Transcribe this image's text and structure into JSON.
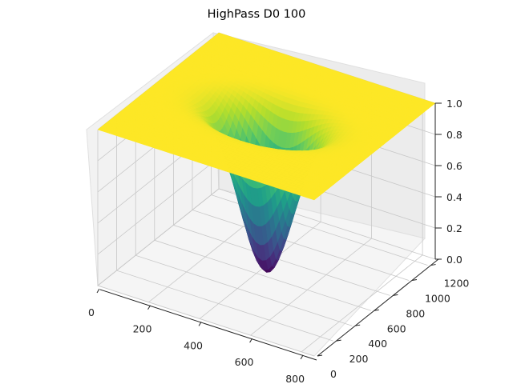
{
  "chart_data": {
    "type": "surface3d",
    "title": "HighPass D0 100",
    "xlabel": "",
    "ylabel": "",
    "zlabel": "",
    "filter": {
      "kind": "gaussian-highpass",
      "D0": 100
    },
    "x_range": [
      0,
      850
    ],
    "y_range": [
      0,
      1280
    ],
    "z_range": [
      0,
      1
    ],
    "x_ticks": [
      0,
      200,
      400,
      600,
      800
    ],
    "y_ticks": [
      0,
      200,
      400,
      600,
      800,
      1000,
      1200
    ],
    "z_ticks": [
      "0.0",
      "0.2",
      "0.4",
      "0.6",
      "0.8",
      "1.0"
    ],
    "center": [
      425,
      640
    ],
    "min_value": 0.0,
    "max_value": 1.0,
    "colormap": "viridis",
    "grid": true
  }
}
